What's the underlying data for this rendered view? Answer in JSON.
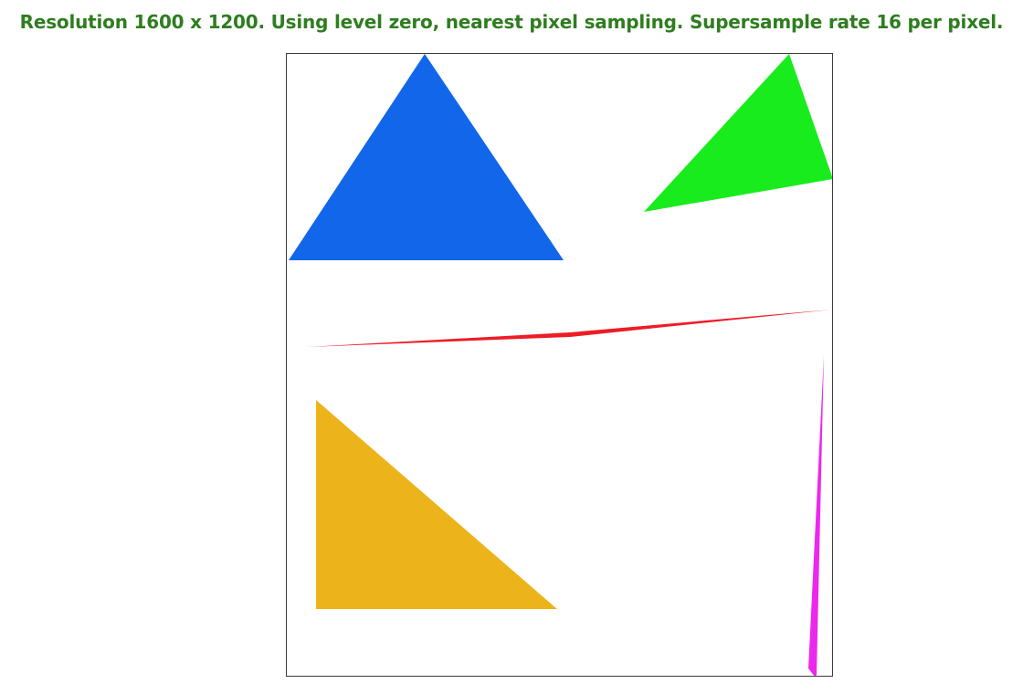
{
  "status": {
    "text": "Resolution 1600 x 1200. Using level zero, nearest pixel sampling. Supersample rate 16 per pixel.",
    "color": "#2e7d1f"
  },
  "scene": {
    "shapes": [
      {
        "name": "blue-triangle",
        "color": "#1166ea"
      },
      {
        "name": "green-triangle",
        "color": "#19ec1c"
      },
      {
        "name": "red-sliver",
        "color": "#ee1c25"
      },
      {
        "name": "yellow-triangle",
        "color": "#ecb41a"
      },
      {
        "name": "magenta-sliver",
        "color": "#ec28ec"
      }
    ]
  }
}
